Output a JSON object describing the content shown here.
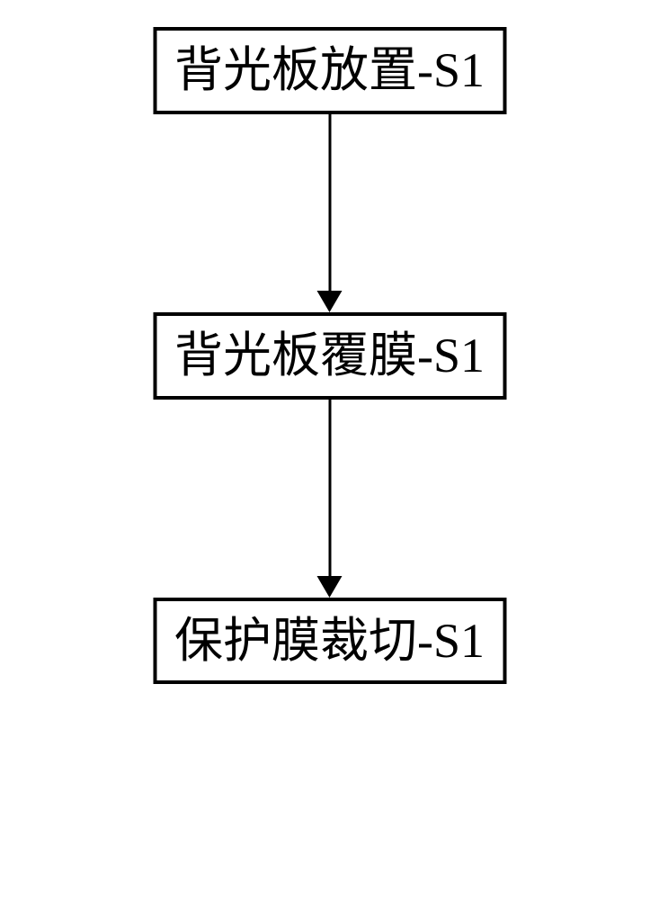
{
  "flowchart": {
    "type": "flowchart",
    "background_color": "#ffffff",
    "nodes": [
      {
        "id": "node-1",
        "label": "背光板放置-S1",
        "border_color": "#000000",
        "border_width": 4,
        "text_color": "#000000",
        "font_size": 54,
        "fill_color": "#ffffff"
      },
      {
        "id": "node-2",
        "label": "背光板覆膜-S1",
        "border_color": "#000000",
        "border_width": 4,
        "text_color": "#000000",
        "font_size": 54,
        "fill_color": "#ffffff"
      },
      {
        "id": "node-3",
        "label": "保护膜裁切-S1",
        "border_color": "#000000",
        "border_width": 4,
        "text_color": "#000000",
        "font_size": 54,
        "fill_color": "#ffffff"
      }
    ],
    "edges": [
      {
        "from": "node-1",
        "to": "node-2",
        "arrow_color": "#000000",
        "line_width": 3,
        "arrow_head_size": 24
      },
      {
        "from": "node-2",
        "to": "node-3",
        "arrow_color": "#000000",
        "line_width": 3,
        "arrow_head_size": 24
      }
    ],
    "layout": {
      "direction": "vertical",
      "node_spacing": 220,
      "alignment": "center"
    }
  }
}
